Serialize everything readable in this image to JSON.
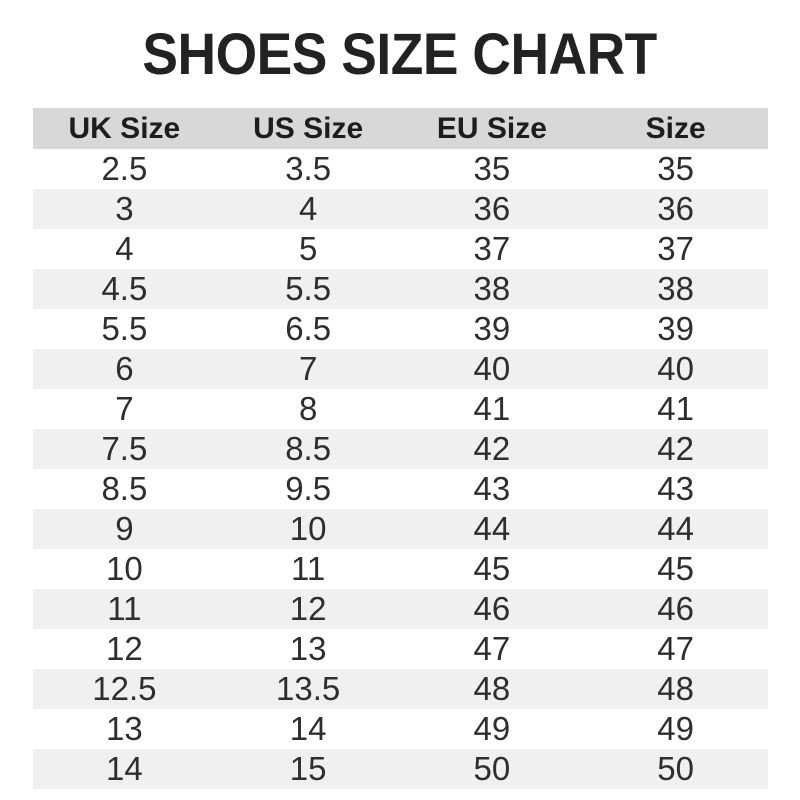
{
  "title": "SHOES SIZE CHART",
  "chart_data": {
    "type": "table",
    "title": "SHOES SIZE CHART",
    "columns": [
      "UK Size",
      "US Size",
      "EU Size",
      "Size"
    ],
    "rows": [
      [
        "2.5",
        "3.5",
        "35",
        "35"
      ],
      [
        "3",
        "4",
        "36",
        "36"
      ],
      [
        "4",
        "5",
        "37",
        "37"
      ],
      [
        "4.5",
        "5.5",
        "38",
        "38"
      ],
      [
        "5.5",
        "6.5",
        "39",
        "39"
      ],
      [
        "6",
        "7",
        "40",
        "40"
      ],
      [
        "7",
        "8",
        "41",
        "41"
      ],
      [
        "7.5",
        "8.5",
        "42",
        "42"
      ],
      [
        "8.5",
        "9.5",
        "43",
        "43"
      ],
      [
        "9",
        "10",
        "44",
        "44"
      ],
      [
        "10",
        "11",
        "45",
        "45"
      ],
      [
        "11",
        "12",
        "46",
        "46"
      ],
      [
        "12",
        "13",
        "47",
        "47"
      ],
      [
        "12.5",
        "13.5",
        "48",
        "48"
      ],
      [
        "13",
        "14",
        "49",
        "49"
      ],
      [
        "14",
        "15",
        "50",
        "50"
      ]
    ],
    "layout": {
      "striped": true,
      "stripe_start_row_index": 1,
      "alignment": "center"
    }
  },
  "colors": {
    "title_text": "#222222",
    "header_bg": "#d8d8d8",
    "header_text": "#1d1d1d",
    "stripe_bg": "#f0f0f0",
    "body_text": "#2e2e2e"
  }
}
